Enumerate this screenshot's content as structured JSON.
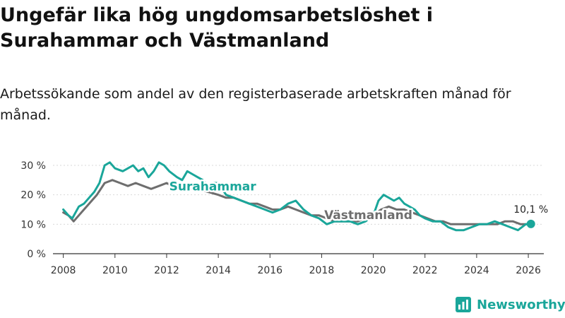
{
  "title": "Ungefär lika hög ungdomsarbetslöshet i Surahammar och Västmanland",
  "subtitle": "Arbetssökande som andel av den registerbaserade arbetskraften månad för månad.",
  "brand": "Newsworthy",
  "colors": {
    "surahammar": "#1aa69a",
    "vastmanland": "#6e6e6e",
    "grid": "#d9d9d9",
    "axis": "#333333"
  },
  "chart_data": {
    "type": "line",
    "ylim": [
      0,
      30
    ],
    "xlim": [
      2007.6,
      2026.6
    ],
    "y_ticks": [
      0,
      10,
      20,
      30
    ],
    "y_tick_labels": [
      "0 %",
      "10 %",
      "20 %",
      "30 %"
    ],
    "x_ticks": [
      2008,
      2010,
      2012,
      2014,
      2016,
      2018,
      2020,
      2022,
      2024,
      2026
    ],
    "x_tick_labels": [
      "2008",
      "2010",
      "2012",
      "2014",
      "2016",
      "2018",
      "2020",
      "2022",
      "2024",
      "2026"
    ],
    "end_label": "10,1 %",
    "end_point": {
      "x": 2026.1,
      "y": 10.1
    },
    "series": [
      {
        "name": "Surahammar",
        "x": [
          2008.0,
          2008.2,
          2008.35,
          2008.6,
          2008.8,
          2009.0,
          2009.2,
          2009.4,
          2009.6,
          2009.8,
          2010.0,
          2010.3,
          2010.5,
          2010.7,
          2010.9,
          2011.1,
          2011.3,
          2011.5,
          2011.7,
          2011.9,
          2012.1,
          2012.4,
          2012.6,
          2012.8,
          2013.0,
          2013.2,
          2013.4,
          2013.6,
          2013.8,
          2014.0,
          2014.3,
          2014.6,
          2014.9,
          2015.2,
          2015.5,
          2015.8,
          2016.1,
          2016.4,
          2016.7,
          2017.0,
          2017.3,
          2017.6,
          2017.9,
          2018.2,
          2018.5,
          2018.8,
          2019.1,
          2019.4,
          2019.7,
          2020.0,
          2020.2,
          2020.4,
          2020.6,
          2020.8,
          2021.0,
          2021.2,
          2021.4,
          2021.6,
          2021.8,
          2022.0,
          2022.3,
          2022.6,
          2022.9,
          2023.2,
          2023.5,
          2023.8,
          2024.1,
          2024.4,
          2024.7,
          2025.0,
          2025.3,
          2025.6,
          2025.9,
          2026.1
        ],
        "y": [
          15,
          13,
          12,
          16,
          17,
          19,
          21,
          24,
          30,
          31,
          29,
          28,
          29,
          30,
          28,
          29,
          26,
          28,
          31,
          30,
          28,
          26,
          25,
          28,
          27,
          26,
          25,
          23,
          24,
          24,
          20,
          19,
          18,
          17,
          16,
          15,
          14,
          15,
          17,
          18,
          15,
          13,
          12,
          10,
          11,
          11,
          11,
          10,
          11,
          13,
          18,
          20,
          19,
          18,
          19,
          17,
          16,
          15,
          13,
          12,
          11,
          11,
          9,
          8,
          8,
          9,
          10,
          10,
          11,
          10,
          9,
          8,
          10,
          10.1
        ]
      },
      {
        "name": "Västmanland",
        "x": [
          2008.0,
          2008.2,
          2008.4,
          2008.6,
          2008.8,
          2009.0,
          2009.3,
          2009.6,
          2009.9,
          2010.2,
          2010.5,
          2010.8,
          2011.1,
          2011.4,
          2011.7,
          2012.0,
          2012.4,
          2012.8,
          2013.2,
          2013.6,
          2014.0,
          2014.3,
          2014.6,
          2014.9,
          2015.2,
          2015.5,
          2015.8,
          2016.1,
          2016.4,
          2016.7,
          2017.0,
          2017.3,
          2017.6,
          2017.9,
          2018.2,
          2018.5,
          2018.8,
          2019.1,
          2019.4,
          2019.7,
          2020.0,
          2020.3,
          2020.6,
          2020.9,
          2021.2,
          2021.5,
          2021.8,
          2022.1,
          2022.4,
          2022.7,
          2023.0,
          2023.3,
          2023.6,
          2023.9,
          2024.2,
          2024.5,
          2024.8,
          2025.1,
          2025.4,
          2025.7,
          2026.0
        ],
        "y": [
          14,
          13,
          11,
          13,
          15,
          17,
          20,
          24,
          25,
          24,
          23,
          24,
          23,
          22,
          23,
          24,
          22,
          22,
          22,
          21,
          20,
          19,
          19,
          18,
          17,
          17,
          16,
          15,
          15,
          16,
          15,
          14,
          13,
          13,
          12,
          11,
          11,
          11,
          11,
          12,
          13,
          15,
          16,
          15,
          15,
          14,
          13,
          12,
          11,
          11,
          10,
          10,
          10,
          10,
          10,
          10,
          10,
          11,
          11,
          10,
          10
        ]
      }
    ],
    "series_labels": [
      {
        "name": "Surahammar",
        "text": "Surahammar",
        "x": 2012.1,
        "y": 21.5
      },
      {
        "name": "Västmanland",
        "text": "Västmanland",
        "x": 2018.1,
        "y": 11.8
      }
    ]
  }
}
